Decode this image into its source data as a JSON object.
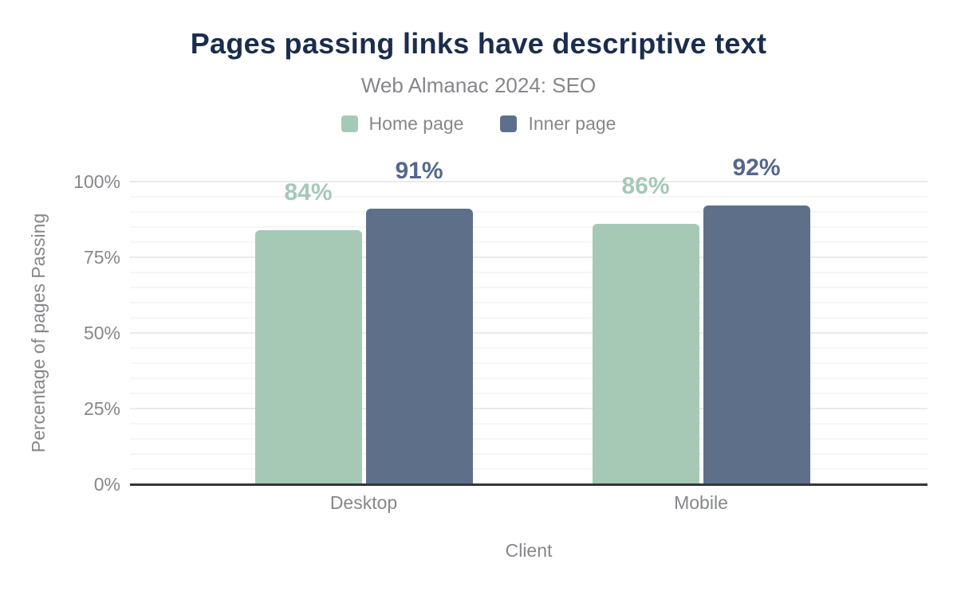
{
  "chart_data": {
    "type": "bar",
    "title": "Pages passing links have descriptive text",
    "subtitle": "Web Almanac 2024: SEO",
    "categories": [
      "Desktop",
      "Mobile"
    ],
    "series": [
      {
        "name": "Home page",
        "color": "#a6c9b5",
        "label_color": "#a5c9b6",
        "values": [
          84,
          86
        ]
      },
      {
        "name": "Inner page",
        "color": "#5e7089",
        "label_color": "#54688e",
        "values": [
          91,
          92
        ]
      }
    ],
    "value_suffix": "%",
    "xlabel": "Client",
    "ylabel": "Percentage of pages Passing",
    "ylim": [
      0,
      100
    ],
    "yticks": [
      0,
      25,
      50,
      75,
      100
    ],
    "ytick_suffix": "%",
    "grid": {
      "minor_step": 5,
      "major_step": 25,
      "minor_color": "#f6f6f6",
      "major_color": "#eaeaea"
    },
    "legend_position": "top",
    "axis_line_color": "#333638"
  },
  "colors": {
    "title": "#1b2d4d",
    "muted_text": "#85878a",
    "background": "#ffffff"
  }
}
